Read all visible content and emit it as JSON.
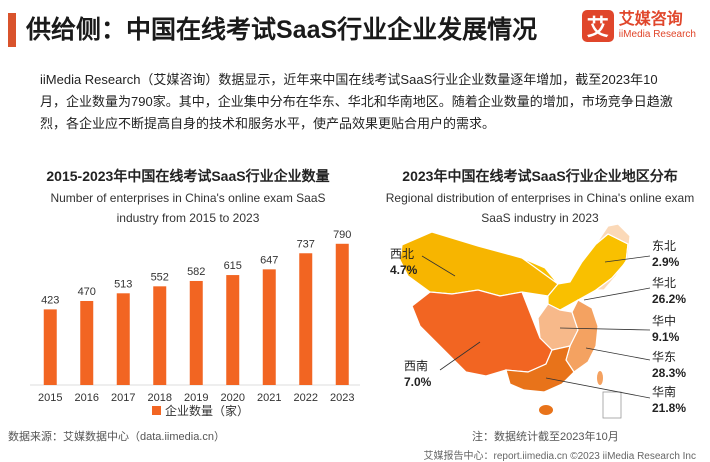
{
  "header": {
    "title": "供给侧：中国在线考试SaaS行业企业发展情况",
    "logo_mark": "艾",
    "logo_cn": "艾媒咨询",
    "logo_en": "iiMedia Research"
  },
  "intro": {
    "text": "iiMedia Research（艾媒咨询）数据显示，近年来中国在线考试SaaS行业企业数量逐年增加，截至2023年10月，企业数量为790家。其中，企业集中分布在华东、华北和华南地区。随着企业数量的增加，市场竞争日趋激烈，各企业应不断提高自身的技术和服务水平，使产品效果更贴合用户的需求。"
  },
  "left_chart": {
    "title": "2015-2023年中国在线考试SaaS行业企业数量",
    "subtitle_line1": "Number of enterprises in China's online exam SaaS",
    "subtitle_line2": "industry from 2015 to 2023"
  },
  "right_chart": {
    "title": "2023年中国在线考试SaaS行业企业地区分布",
    "subtitle_line1": "Regional distribution of enterprises in China's online exam",
    "subtitle_line2": "SaaS industry in 2023"
  },
  "chart_data": [
    {
      "type": "bar",
      "title": "2015-2023年中国在线考试SaaS行业企业数量",
      "categories": [
        "2015",
        "2016",
        "2017",
        "2018",
        "2019",
        "2020",
        "2021",
        "2022",
        "2023"
      ],
      "series": [
        {
          "name": "企业数量（家）",
          "values": [
            423,
            470,
            513,
            552,
            582,
            615,
            647,
            737,
            790
          ]
        }
      ],
      "ylim": [
        0,
        800
      ],
      "legend": "bottom",
      "color": "#f26522"
    },
    {
      "type": "pie",
      "title": "2023年中国在线考试SaaS行业企业地区分布",
      "labels": [
        "西北",
        "东北",
        "华北",
        "华中",
        "华东",
        "西南",
        "华南"
      ],
      "values": [
        4.7,
        2.9,
        26.2,
        9.1,
        28.3,
        7.0,
        21.8
      ],
      "value_labels": [
        "4.7%",
        "2.9%",
        "26.2%",
        "9.1%",
        "28.3%",
        "7.0%",
        "21.8%"
      ],
      "unit": "%"
    }
  ],
  "footer": {
    "source": "数据来源：艾媒数据中心（data.iimedia.cn）",
    "note": "注：数据统计截至2023年10月",
    "report": "艾媒报告中心：report.iimedia.cn  ©2023  iiMedia Research  Inc"
  },
  "colors": {
    "accent": "#d9532c",
    "bar": "#f26522",
    "northwest": "#f7b500",
    "north": "#f9c000",
    "northeast": "#fbd9b8",
    "southwest": "#f26522",
    "central": "#f7b98a",
    "east": "#f4a261",
    "south": "#e8731a"
  }
}
